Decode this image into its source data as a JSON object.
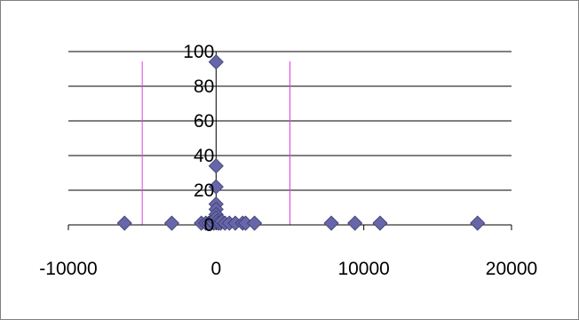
{
  "chart_data": {
    "type": "scatter",
    "title": "",
    "xlabel": "",
    "ylabel": "",
    "xlim": [
      -10000,
      20000
    ],
    "ylim": [
      0,
      100
    ],
    "x_ticks": [
      -10000,
      0,
      10000,
      20000
    ],
    "y_ticks": [
      0,
      20,
      40,
      60,
      80,
      100
    ],
    "x_tick_labels": [
      "-10000",
      "0",
      "10000",
      "20000"
    ],
    "y_tick_labels": [
      "0",
      "20",
      "40",
      "60",
      "80",
      "100"
    ],
    "grid": "horizontal",
    "legend": "none",
    "marker": "diamond",
    "colors": {
      "marker": "#6666a8",
      "marker_stroke": "#3d3d73",
      "reference_line": "#e040e0",
      "gridline": "#000000",
      "axis": "#000000"
    },
    "reference_lines_x": [
      -5000,
      5000
    ],
    "series": [
      {
        "points": [
          [
            -6200,
            1
          ],
          [
            -3000,
            1
          ],
          [
            -1000,
            1
          ],
          [
            -700,
            1
          ],
          [
            -500,
            1
          ],
          [
            -300,
            2
          ],
          [
            -150,
            1
          ],
          [
            -50,
            3
          ],
          [
            0,
            94
          ],
          [
            0,
            34
          ],
          [
            0,
            22
          ],
          [
            0,
            12
          ],
          [
            0,
            9
          ],
          [
            0,
            6
          ],
          [
            0,
            4
          ],
          [
            50,
            2
          ],
          [
            150,
            1
          ],
          [
            300,
            1
          ],
          [
            400,
            2
          ],
          [
            600,
            1
          ],
          [
            900,
            1
          ],
          [
            1300,
            1
          ],
          [
            1800,
            1
          ],
          [
            2000,
            1
          ],
          [
            2600,
            1
          ],
          [
            7800,
            1
          ],
          [
            9400,
            1
          ],
          [
            11100,
            1
          ],
          [
            17700,
            1
          ]
        ]
      }
    ]
  }
}
